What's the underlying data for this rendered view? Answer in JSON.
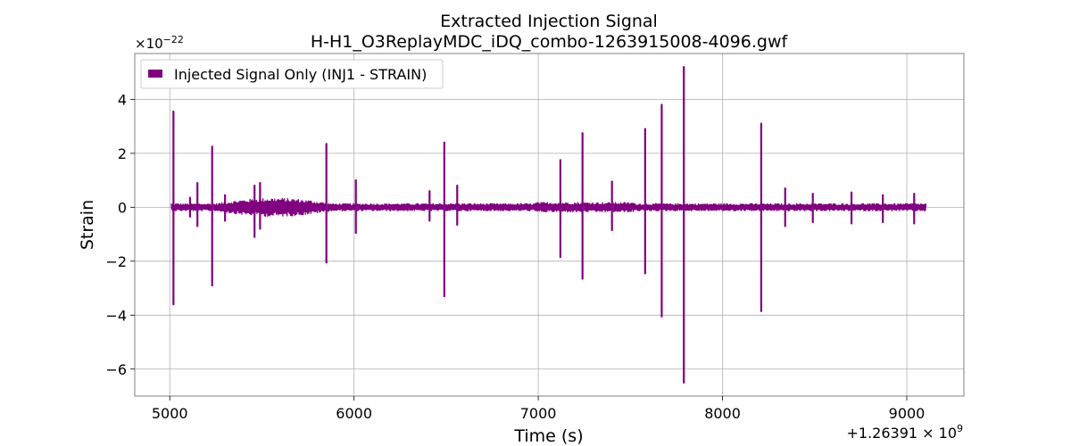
{
  "chart_data": {
    "type": "line",
    "title": "Extracted Injection Signal",
    "subtitle": "H-H1_O3ReplayMDC_iDQ_combo-1263915008-4096.gwf",
    "xlabel": "Time (s)",
    "ylabel": "Strain",
    "x_offset_label": "+1.26391",
    "x_offset_exp": "9",
    "y_scale_label": "×10",
    "y_scale_exp": "−22",
    "xlim": [
      4810,
      9310
    ],
    "ylim": [
      -7.0,
      5.7
    ],
    "x_ticks": [
      5000,
      6000,
      7000,
      8000,
      9000
    ],
    "y_ticks": [
      -6,
      -4,
      -2,
      0,
      2,
      4
    ],
    "x_tick_labels": [
      "5000",
      "6000",
      "7000",
      "8000",
      "9000"
    ],
    "y_tick_labels": [
      "−6",
      "−4",
      "−2",
      "0",
      "2",
      "4"
    ],
    "grid": true,
    "legend_position": "top-left",
    "series": [
      {
        "name": "Injected Signal Only (INJ1 - STRAIN)",
        "color": "#800080",
        "x_range": [
          5008,
          9104
        ],
        "baseline_envelope": 0.15,
        "spikes": [
          {
            "x": 5020,
            "max": 3.55,
            "min": -3.6
          },
          {
            "x": 5110,
            "max": 0.35,
            "min": -0.35
          },
          {
            "x": 5150,
            "max": 0.9,
            "min": -0.7
          },
          {
            "x": 5230,
            "max": 2.25,
            "min": -2.9
          },
          {
            "x": 5300,
            "max": 0.45,
            "min": -0.5
          },
          {
            "x": 5460,
            "max": 0.8,
            "min": -1.1
          },
          {
            "x": 5490,
            "max": 0.9,
            "min": -0.8
          },
          {
            "x": 5850,
            "max": 2.35,
            "min": -2.05
          },
          {
            "x": 6010,
            "max": 1.0,
            "min": -0.95
          },
          {
            "x": 6410,
            "max": 0.6,
            "min": -0.5
          },
          {
            "x": 6490,
            "max": 2.4,
            "min": -3.3
          },
          {
            "x": 6560,
            "max": 0.8,
            "min": -0.65
          },
          {
            "x": 7120,
            "max": 1.75,
            "min": -1.85
          },
          {
            "x": 7240,
            "max": 2.75,
            "min": -2.65
          },
          {
            "x": 7400,
            "max": 0.95,
            "min": -0.85
          },
          {
            "x": 7580,
            "max": 2.9,
            "min": -2.45
          },
          {
            "x": 7670,
            "max": 3.8,
            "min": -4.05
          },
          {
            "x": 7790,
            "max": 5.2,
            "min": -6.5
          },
          {
            "x": 8210,
            "max": 3.1,
            "min": -3.85
          },
          {
            "x": 8340,
            "max": 0.7,
            "min": -0.7
          },
          {
            "x": 8490,
            "max": 0.5,
            "min": -0.55
          },
          {
            "x": 8700,
            "max": 0.55,
            "min": -0.6
          },
          {
            "x": 8870,
            "max": 0.45,
            "min": -0.55
          },
          {
            "x": 9040,
            "max": 0.5,
            "min": -0.6
          }
        ]
      }
    ]
  }
}
